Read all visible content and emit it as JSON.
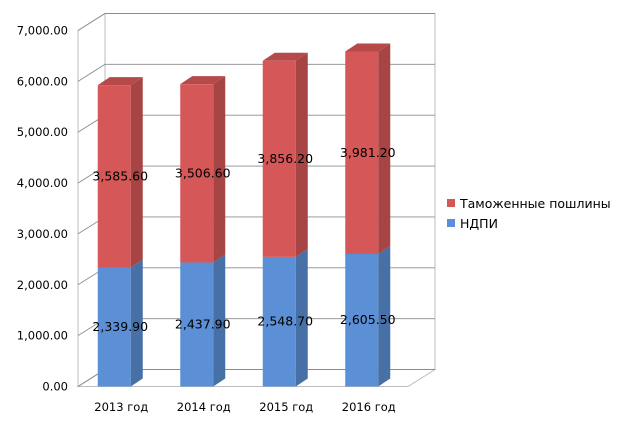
{
  "chart_data": {
    "type": "bar",
    "stacked": true,
    "view": "3d",
    "categories": [
      "2013 год",
      "2014 год",
      "2015 год",
      "2016 год"
    ],
    "series": [
      {
        "name": "НДПИ",
        "values": [
          2339.9,
          2437.9,
          2548.7,
          2605.5
        ],
        "labels": [
          "2,339.90",
          "2,437.90",
          "2,548.70",
          "2,605.50"
        ],
        "color": "#5b8fd6"
      },
      {
        "name": "Таможенные пошлины",
        "values": [
          3585.6,
          3506.6,
          3856.2,
          3981.2
        ],
        "labels": [
          "3,585.60",
          "3,506.60",
          "3,856.20",
          "3,981.20"
        ],
        "color": "#d65757"
      }
    ],
    "ylim": [
      0,
      7000
    ],
    "yticks": [
      0,
      1000,
      2000,
      3000,
      4000,
      5000,
      6000,
      7000
    ],
    "ytick_labels": [
      "0.00",
      "1,000.00",
      "2,000.00",
      "3,000.00",
      "4,000.00",
      "5,000.00",
      "6,000.00",
      "7,000.00"
    ],
    "grid": true,
    "legend_position": "right",
    "legend": [
      {
        "name": "Таможенные пошлины",
        "color": "#d65757"
      },
      {
        "name": "НДПИ",
        "color": "#5b8fd6"
      }
    ]
  }
}
